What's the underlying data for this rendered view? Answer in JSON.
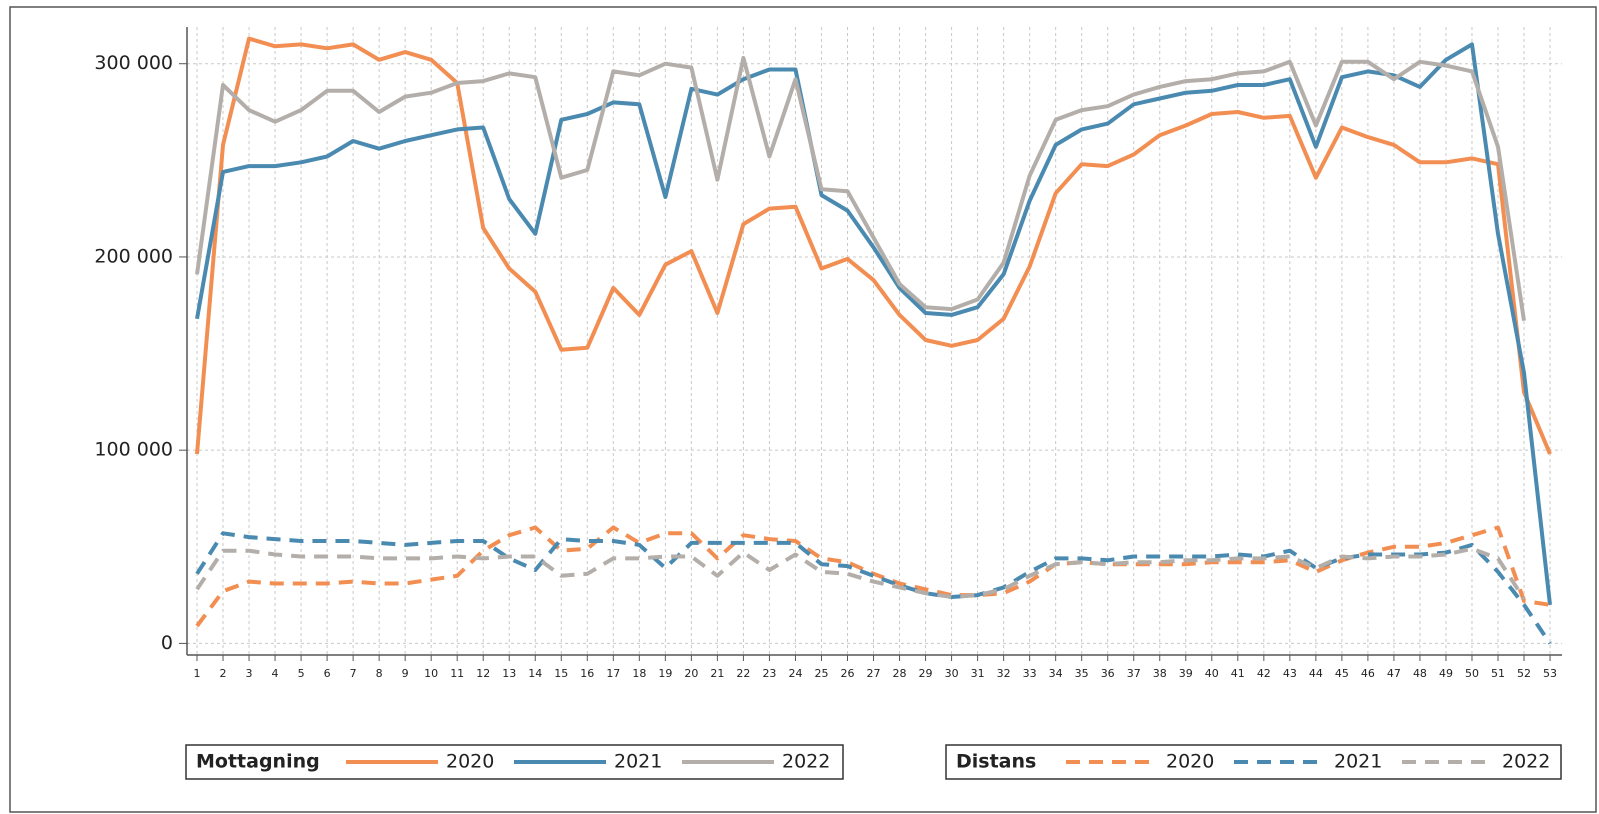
{
  "chart_data": {
    "type": "line",
    "categories": [
      "1",
      "2",
      "3",
      "4",
      "5",
      "6",
      "7",
      "8",
      "9",
      "10",
      "11",
      "12",
      "13",
      "14",
      "15",
      "16",
      "17",
      "18",
      "19",
      "20",
      "21",
      "22",
      "23",
      "24",
      "25",
      "26",
      "27",
      "28",
      "29",
      "30",
      "31",
      "32",
      "33",
      "34",
      "35",
      "36",
      "37",
      "38",
      "39",
      "40",
      "41",
      "42",
      "43",
      "44",
      "45",
      "46",
      "47",
      "48",
      "49",
      "50",
      "51",
      "52",
      "53"
    ],
    "ylim": [
      -6000,
      319000
    ],
    "yticks": [
      0,
      {
        "value": 100000,
        "label": "100 000"
      },
      {
        "value": 200000,
        "label": "200 000"
      },
      {
        "value": 300000,
        "label": "300 000"
      }
    ],
    "grid": true,
    "groups": [
      {
        "name": "Mottagning",
        "line": "solid",
        "series": [
          {
            "name": "2020",
            "color": "#f28e52",
            "values": [
              98000,
              258000,
              313000,
              309000,
              310000,
              308000,
              310000,
              302000,
              306000,
              302000,
              290000,
              215000,
              194000,
              182000,
              152000,
              153000,
              184000,
              170000,
              196000,
              203000,
              171000,
              217000,
              225000,
              226000,
              194000,
              199000,
              188000,
              170000,
              157000,
              154000,
              157000,
              168000,
              195000,
              233000,
              248000,
              247000,
              253000,
              263000,
              268000,
              274000,
              275000,
              272000,
              273000,
              241000,
              267000,
              262000,
              258000,
              249000,
              249000,
              251000,
              248000,
              130000,
              98000
            ]
          },
          {
            "name": "2021",
            "color": "#4a8ab0",
            "values": [
              168000,
              244000,
              247000,
              247000,
              249000,
              252000,
              260000,
              256000,
              260000,
              263000,
              266000,
              267000,
              230000,
              212000,
              271000,
              274000,
              280000,
              279000,
              231000,
              287000,
              284000,
              292000,
              297000,
              297000,
              232000,
              224000,
              205000,
              184000,
              171000,
              170000,
              174000,
              191000,
              229000,
              258000,
              266000,
              269000,
              279000,
              282000,
              285000,
              286000,
              289000,
              289000,
              292000,
              257000,
              293000,
              296000,
              294000,
              288000,
              302000,
              310000,
              212000,
              140000,
              20000
            ]
          },
          {
            "name": "2022",
            "color": "#b3aea9",
            "values": [
              191000,
              289000,
              276000,
              270000,
              276000,
              286000,
              286000,
              275000,
              283000,
              285000,
              290000,
              291000,
              295000,
              293000,
              241000,
              245000,
              296000,
              294000,
              300000,
              298000,
              240000,
              303000,
              252000,
              292000,
              235000,
              234000,
              210000,
              186000,
              174000,
              173000,
              178000,
              197000,
              242000,
              271000,
              276000,
              278000,
              284000,
              288000,
              291000,
              292000,
              295000,
              296000,
              301000,
              268000,
              301000,
              301000,
              292000,
              301000,
              299000,
              296000,
              257000,
              167000,
              null
            ]
          }
        ]
      },
      {
        "name": "Distans",
        "line": "dashed",
        "series": [
          {
            "name": "2020",
            "color": "#f28e52",
            "values": [
              9000,
              27000,
              32000,
              31000,
              31000,
              31000,
              32000,
              31000,
              31000,
              33000,
              35000,
              48000,
              56000,
              60000,
              48000,
              49000,
              60000,
              52000,
              57000,
              57000,
              44000,
              56000,
              54000,
              53000,
              44000,
              42000,
              36000,
              31000,
              28000,
              25000,
              25000,
              26000,
              32000,
              41000,
              42000,
              41000,
              41000,
              41000,
              41000,
              42000,
              42000,
              42000,
              43000,
              37000,
              43000,
              47000,
              50000,
              50000,
              52000,
              56000,
              60000,
              22000,
              20000
            ]
          },
          {
            "name": "2021",
            "color": "#4a8ab0",
            "values": [
              36000,
              57000,
              55000,
              54000,
              53000,
              53000,
              53000,
              52000,
              51000,
              52000,
              53000,
              53000,
              44000,
              38000,
              54000,
              53000,
              53000,
              51000,
              39000,
              52000,
              52000,
              52000,
              52000,
              52000,
              41000,
              40000,
              35000,
              30000,
              26000,
              24000,
              25000,
              29000,
              37000,
              44000,
              44000,
              43000,
              45000,
              45000,
              45000,
              45000,
              46000,
              45000,
              48000,
              39000,
              44000,
              46000,
              46000,
              46000,
              47000,
              51000,
              37000,
              20000,
              0
            ]
          },
          {
            "name": "2022",
            "color": "#b3aea9",
            "values": [
              28000,
              48000,
              48000,
              46000,
              45000,
              45000,
              45000,
              44000,
              44000,
              44000,
              45000,
              44000,
              45000,
              45000,
              35000,
              36000,
              44000,
              44000,
              45000,
              45000,
              35000,
              47000,
              38000,
              46000,
              37000,
              36000,
              32000,
              29000,
              26000,
              24000,
              25000,
              28000,
              35000,
              41000,
              42000,
              41000,
              42000,
              42000,
              43000,
              43000,
              44000,
              44000,
              45000,
              39000,
              45000,
              44000,
              45000,
              45000,
              46000,
              49000,
              44000,
              23000,
              null
            ]
          }
        ]
      }
    ]
  }
}
